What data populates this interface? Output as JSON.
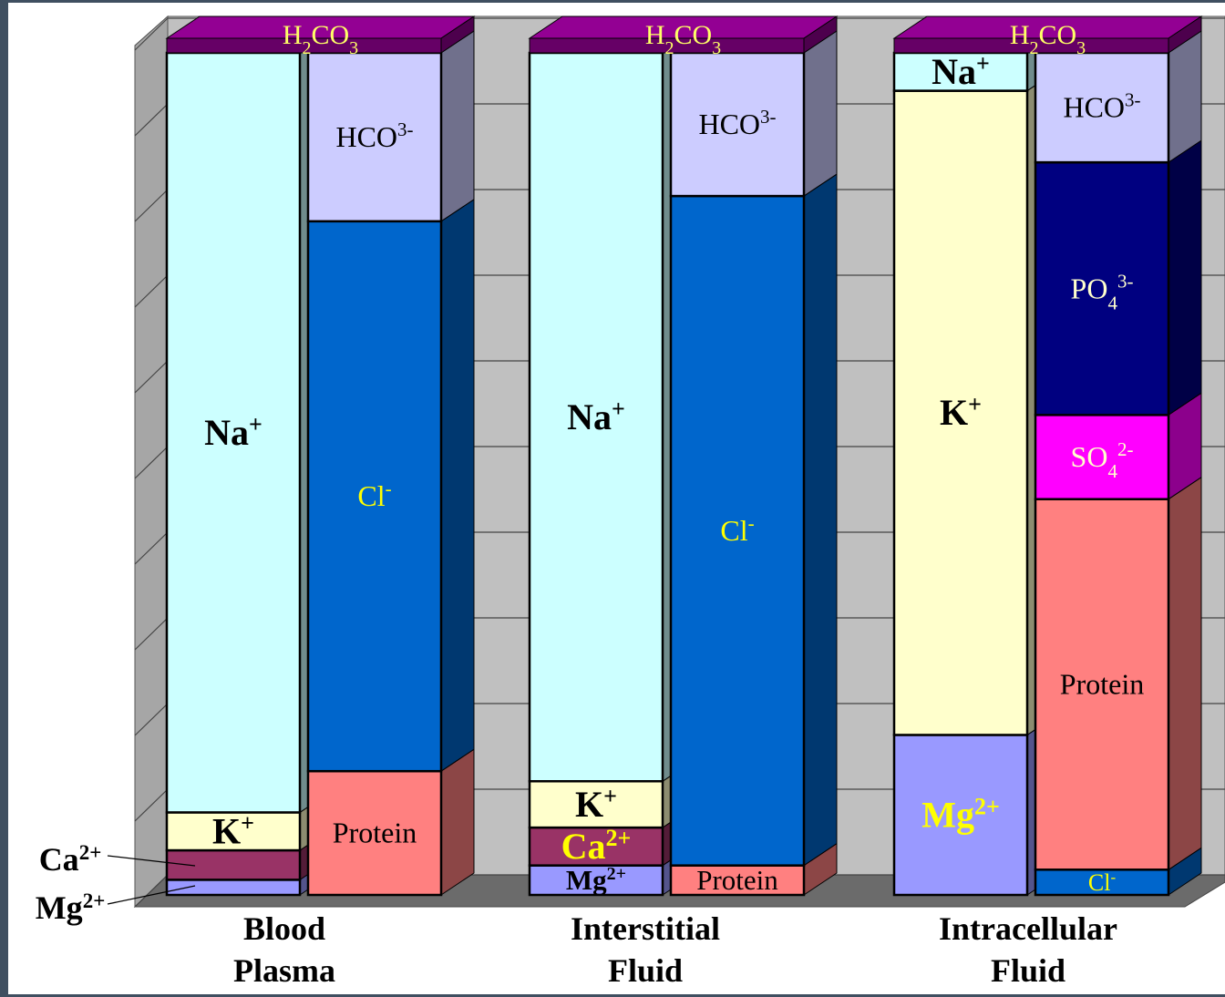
{
  "chart_data": {
    "type": "bar",
    "stacked": true,
    "grid": true,
    "legend": "none",
    "title": "",
    "xlabel": "",
    "ylabel": "",
    "categories": [
      "Blood Plasma",
      "Interstitial Fluid",
      "Intracellular Fluid"
    ],
    "category_lines": [
      [
        "Blood",
        "Plasma"
      ],
      [
        "Interstitial",
        "Fluid"
      ],
      [
        "Intracellular",
        "Fluid"
      ]
    ],
    "bars": [
      {
        "category": "Blood Plasma",
        "side": "cations",
        "segments": [
          {
            "name": "Mg2+",
            "value": 0.018,
            "color": "#9999ff",
            "label": "",
            "label_color": "#000000"
          },
          {
            "name": "Ca2+",
            "value": 0.035,
            "color": "#993366",
            "label": "",
            "label_color": "#000000"
          },
          {
            "name": "K+",
            "value": 0.045,
            "color": "#ffffcc",
            "label": "K+",
            "label_color": "#000000"
          },
          {
            "name": "Na+",
            "value": 0.902,
            "color": "#ccffff",
            "label": "Na+",
            "label_color": "#000000"
          }
        ]
      },
      {
        "category": "Blood Plasma",
        "side": "anions",
        "segments": [
          {
            "name": "Protein",
            "value": 0.147,
            "color": "#ff8080",
            "label": "Protein",
            "label_color": "#000000"
          },
          {
            "name": "Cl-",
            "value": 0.653,
            "color": "#0066cc",
            "label": "Cl-",
            "label_color": "#ffff00"
          },
          {
            "name": "HCO3-",
            "value": 0.2,
            "color": "#ccccff",
            "label": "HCO3-",
            "label_color": "#000000"
          }
        ]
      },
      {
        "category": "Interstitial Fluid",
        "side": "cations",
        "segments": [
          {
            "name": "Mg2+",
            "value": 0.035,
            "color": "#9999ff",
            "label": "Mg2+",
            "label_color": "#000000"
          },
          {
            "name": "Ca2+",
            "value": 0.045,
            "color": "#993366",
            "label": "Ca2+",
            "label_color": "#ffff00"
          },
          {
            "name": "K+",
            "value": 0.055,
            "color": "#ffffcc",
            "label": "K+",
            "label_color": "#000000"
          },
          {
            "name": "Na+",
            "value": 0.865,
            "color": "#ccffff",
            "label": "Na+",
            "label_color": "#000000"
          }
        ]
      },
      {
        "category": "Interstitial Fluid",
        "side": "anions",
        "segments": [
          {
            "name": "Protein",
            "value": 0.035,
            "color": "#ff8080",
            "label": "Protein",
            "label_color": "#000000"
          },
          {
            "name": "Cl-",
            "value": 0.795,
            "color": "#0066cc",
            "label": "Cl-",
            "label_color": "#ffff00"
          },
          {
            "name": "HCO3-",
            "value": 0.17,
            "color": "#ccccff",
            "label": "HCO3-",
            "label_color": "#000000"
          }
        ]
      },
      {
        "category": "Intracellular Fluid",
        "side": "cations",
        "segments": [
          {
            "name": "Mg2+",
            "value": 0.19,
            "color": "#9999ff",
            "label": "Mg2+",
            "label_color": "#ffff00"
          },
          {
            "name": "K+",
            "value": 0.765,
            "color": "#ffffcc",
            "label": "K+",
            "label_color": "#000000"
          },
          {
            "name": "Na+",
            "value": 0.045,
            "color": "#ccffff",
            "label": "Na+",
            "label_color": "#000000"
          }
        ]
      },
      {
        "category": "Intracellular Fluid",
        "side": "anions",
        "segments": [
          {
            "name": "Cl-",
            "value": 0.03,
            "color": "#0066cc",
            "label": "Cl-",
            "label_color": "#ffff00"
          },
          {
            "name": "Protein",
            "value": 0.44,
            "color": "#ff8080",
            "label": "Protein",
            "label_color": "#000000"
          },
          {
            "name": "SO42-",
            "value": 0.1,
            "color": "#ff00ff",
            "label": "SO42-",
            "label_color": "#ffffcc"
          },
          {
            "name": "PO43-",
            "value": 0.3,
            "color": "#000080",
            "label": "PO43-",
            "label_color": "#ffffcc"
          },
          {
            "name": "HCO3-",
            "value": 0.13,
            "color": "#ccccff",
            "label": "HCO3-",
            "label_color": "#000000"
          }
        ]
      }
    ],
    "top_caps": [
      {
        "category": "Blood Plasma",
        "label": "H2CO3",
        "color": "#800080",
        "label_color": "#ffff66"
      },
      {
        "category": "Interstitial Fluid",
        "label": "H2CO3",
        "color": "#800080",
        "label_color": "#ffff66"
      },
      {
        "category": "Intracellular Fluid",
        "label": "H2CO3",
        "color": "#800080",
        "label_color": "#ffff66"
      }
    ],
    "callouts": [
      {
        "label": "Ca2+",
        "points_to": "Blood Plasma Ca2+"
      },
      {
        "label": "Mg2+",
        "points_to": "Blood Plasma Mg2+"
      }
    ],
    "colors": {
      "back_wall": "#c0c0c0",
      "side_wall": "#a6a6a6",
      "floor": "#6b6b6b",
      "frame": "#3f4f60"
    }
  }
}
